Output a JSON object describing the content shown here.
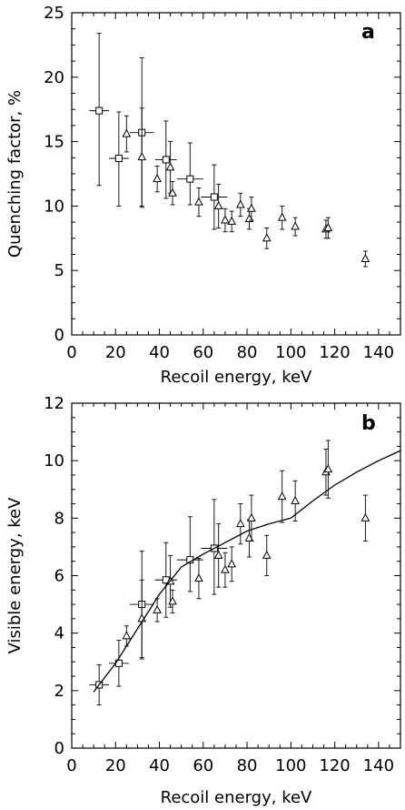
{
  "chart_data": [
    {
      "type": "scatter",
      "panel_label": "a",
      "xlabel": "Recoil energy, keV",
      "ylabel": "Quenching factor, %",
      "xlim": [
        0,
        150
      ],
      "ylim": [
        0,
        25
      ],
      "xticks": [
        0,
        20,
        40,
        60,
        80,
        100,
        120,
        140
      ],
      "yticks": [
        0,
        5,
        10,
        15,
        20,
        25
      ],
      "grid": false,
      "series": [
        {
          "marker": "square",
          "points": [
            {
              "x": 12.5,
              "y": 17.4,
              "xerr": 4.5,
              "yerr_lo": 5.8,
              "yerr_hi": 6.0
            },
            {
              "x": 21.5,
              "y": 13.7,
              "xerr": 4.5,
              "yerr_lo": 3.7,
              "yerr_hi": 3.6
            },
            {
              "x": 32,
              "y": 15.7,
              "xerr": 5.5,
              "yerr_lo": 5.8,
              "yerr_hi": 5.8
            },
            {
              "x": 43,
              "y": 13.6,
              "xerr": 5.0,
              "yerr_lo": 3.0,
              "yerr_hi": 3.0
            },
            {
              "x": 54,
              "y": 12.1,
              "xerr": 6.0,
              "yerr_lo": 2.0,
              "yerr_hi": 2.8
            },
            {
              "x": 65,
              "y": 10.7,
              "xerr": 6.0,
              "yerr_lo": 2.5,
              "yerr_hi": 2.5
            }
          ]
        },
        {
          "marker": "triangle",
          "points": [
            {
              "x": 25,
              "y": 15.6,
              "yerr": 1.4
            },
            {
              "x": 32,
              "y": 13.8,
              "yerr": 3.8
            },
            {
              "x": 39,
              "y": 12.1,
              "yerr": 1.0
            },
            {
              "x": 45,
              "y": 13.0,
              "yerr": 2.0
            },
            {
              "x": 46,
              "y": 11.0,
              "yerr": 0.9
            },
            {
              "x": 58,
              "y": 10.3,
              "yerr": 1.1
            },
            {
              "x": 67,
              "y": 10.0,
              "yerr": 1.7
            },
            {
              "x": 70,
              "y": 8.9,
              "yerr": 0.9
            },
            {
              "x": 73,
              "y": 8.8,
              "yerr": 0.8
            },
            {
              "x": 77,
              "y": 10.1,
              "yerr": 0.9
            },
            {
              "x": 81,
              "y": 9.0,
              "yerr": 0.8
            },
            {
              "x": 82,
              "y": 9.8,
              "yerr": 0.9
            },
            {
              "x": 89,
              "y": 7.5,
              "yerr": 0.8
            },
            {
              "x": 96,
              "y": 9.1,
              "yerr": 0.9
            },
            {
              "x": 102,
              "y": 8.4,
              "yerr": 0.7
            },
            {
              "x": 116,
              "y": 8.2,
              "yerr": 0.7
            },
            {
              "x": 117,
              "y": 8.3,
              "yerr": 0.8
            },
            {
              "x": 134,
              "y": 5.9,
              "yerr": 0.6
            }
          ]
        }
      ]
    },
    {
      "type": "scatter",
      "panel_label": "b",
      "xlabel": "Recoil energy, keV",
      "ylabel": "Visible energy, keV",
      "xlim": [
        0,
        150
      ],
      "ylim": [
        0,
        12
      ],
      "xticks": [
        0,
        20,
        40,
        60,
        80,
        100,
        120,
        140
      ],
      "yticks": [
        0,
        2,
        4,
        6,
        8,
        10,
        12
      ],
      "grid": false,
      "series": [
        {
          "marker": "square",
          "points": [
            {
              "x": 12.5,
              "y": 2.2,
              "xerr": 4.5,
              "yerr_lo": 0.7,
              "yerr_hi": 0.7
            },
            {
              "x": 21.5,
              "y": 2.95,
              "xerr": 4.5,
              "yerr_lo": 0.8,
              "yerr_hi": 0.8
            },
            {
              "x": 32,
              "y": 5.0,
              "xerr": 5.5,
              "yerr_lo": 1.9,
              "yerr_hi": 1.85
            },
            {
              "x": 43,
              "y": 5.85,
              "xerr": 5.0,
              "yerr_lo": 1.3,
              "yerr_hi": 1.3
            },
            {
              "x": 54,
              "y": 6.55,
              "xerr": 6.0,
              "yerr_lo": 1.1,
              "yerr_hi": 1.5
            },
            {
              "x": 65,
              "y": 6.95,
              "xerr": 6.0,
              "yerr_lo": 1.6,
              "yerr_hi": 1.7
            }
          ]
        },
        {
          "marker": "triangle",
          "points": [
            {
              "x": 25,
              "y": 3.9,
              "yerr": 0.35
            },
            {
              "x": 32,
              "y": 4.5,
              "yerr": 1.35
            },
            {
              "x": 39,
              "y": 4.8,
              "yerr": 0.4
            },
            {
              "x": 45,
              "y": 5.8,
              "yerr": 0.9
            },
            {
              "x": 46,
              "y": 5.1,
              "yerr": 0.4
            },
            {
              "x": 58,
              "y": 5.9,
              "yerr": 0.7
            },
            {
              "x": 67,
              "y": 6.7,
              "yerr": 1.1
            },
            {
              "x": 70,
              "y": 6.2,
              "yerr": 0.6
            },
            {
              "x": 73,
              "y": 6.4,
              "yerr": 0.6
            },
            {
              "x": 77,
              "y": 7.8,
              "yerr": 0.7
            },
            {
              "x": 81,
              "y": 7.3,
              "yerr": 0.65
            },
            {
              "x": 82,
              "y": 8.0,
              "yerr": 0.8
            },
            {
              "x": 89,
              "y": 6.7,
              "yerr": 0.7
            },
            {
              "x": 96,
              "y": 8.75,
              "yerr": 0.9
            },
            {
              "x": 102,
              "y": 8.6,
              "yerr": 0.7
            },
            {
              "x": 116,
              "y": 9.6,
              "yerr": 0.8
            },
            {
              "x": 117,
              "y": 9.7,
              "yerr": 1.0
            },
            {
              "x": 134,
              "y": 8.0,
              "yerr": 0.8
            }
          ]
        },
        {
          "marker": "line",
          "points": [
            {
              "x": 10,
              "y": 1.95
            },
            {
              "x": 20,
              "y": 2.95
            },
            {
              "x": 30,
              "y": 4.15
            },
            {
              "x": 40,
              "y": 5.35
            },
            {
              "x": 50,
              "y": 6.3
            },
            {
              "x": 60,
              "y": 6.75
            },
            {
              "x": 70,
              "y": 7.15
            },
            {
              "x": 80,
              "y": 7.55
            },
            {
              "x": 90,
              "y": 7.8
            },
            {
              "x": 100,
              "y": 8.0
            },
            {
              "x": 110,
              "y": 8.6
            },
            {
              "x": 120,
              "y": 9.15
            },
            {
              "x": 130,
              "y": 9.6
            },
            {
              "x": 140,
              "y": 10.0
            },
            {
              "x": 150,
              "y": 10.35
            }
          ]
        }
      ]
    }
  ]
}
